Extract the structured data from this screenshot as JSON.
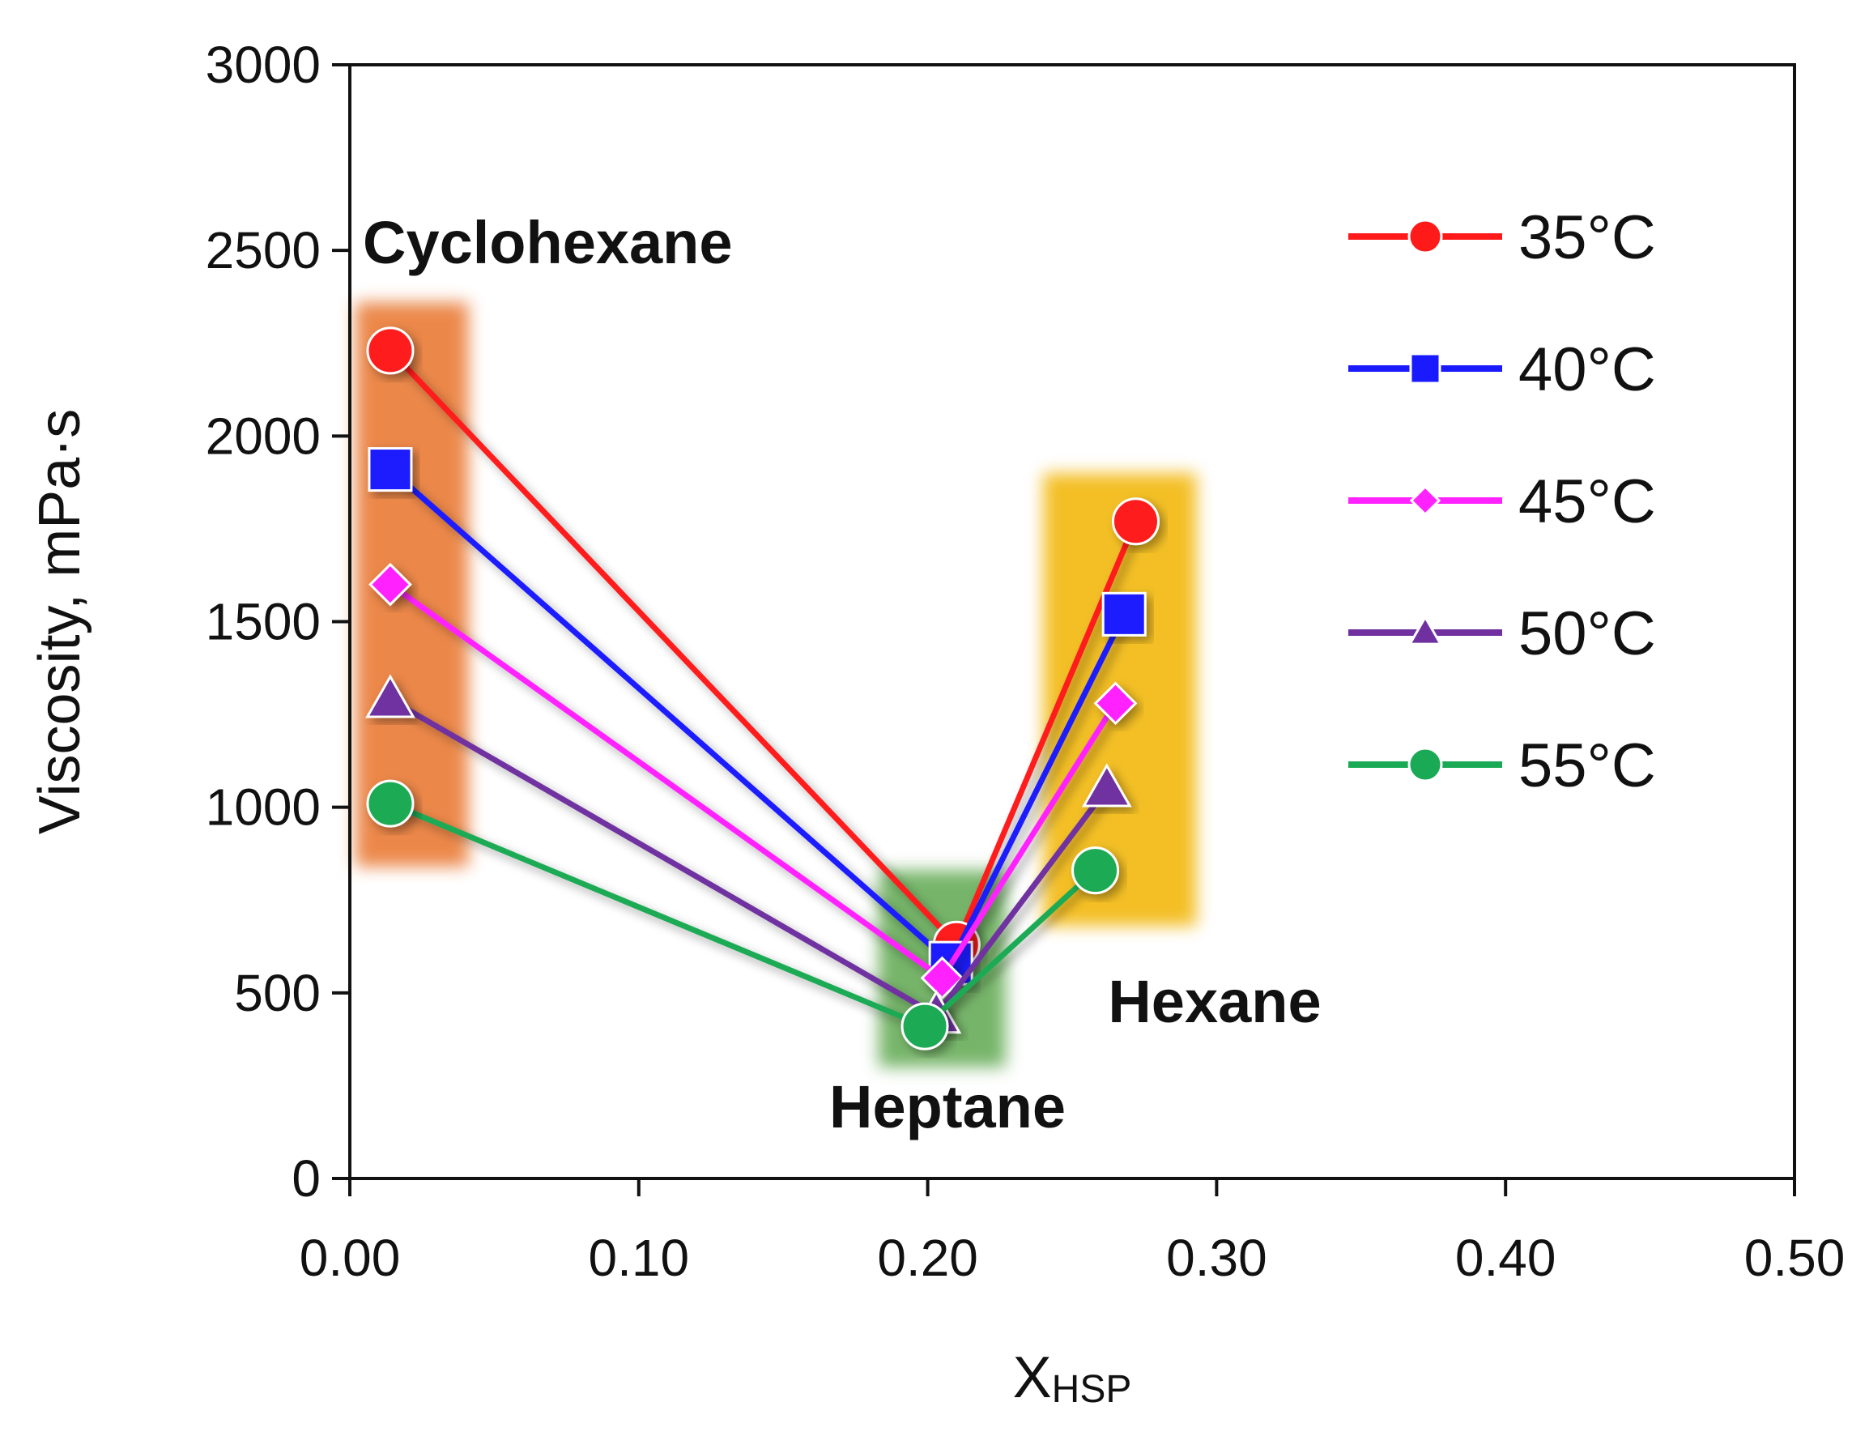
{
  "chart_data": {
    "type": "line",
    "title": "",
    "xlabel": {
      "main": "X",
      "subscript": "HSP"
    },
    "ylabel": "Viscosity, mPa·s",
    "xlim": [
      0,
      0.5
    ],
    "ylim": [
      0,
      3000
    ],
    "x_ticks": [
      "0.00",
      "0.10",
      "0.20",
      "0.30",
      "0.40",
      "0.50"
    ],
    "y_ticks": [
      "0",
      "500",
      "1000",
      "1500",
      "2000",
      "2500",
      "3000"
    ],
    "grid": false,
    "legend_position": "top-right",
    "regions": [
      {
        "label": "Cyclohexane",
        "x_range": [
          0.002,
          0.041
        ],
        "y_range": [
          840,
          2360
        ],
        "color": "#e8732c"
      },
      {
        "label": "Heptane",
        "x_range": [
          0.183,
          0.227
        ],
        "y_range": [
          300,
          830
        ],
        "color": "#5ea84f"
      },
      {
        "label": "Hexane",
        "x_range": [
          0.24,
          0.293
        ],
        "y_range": [
          680,
          1900
        ],
        "color": "#f2b400"
      }
    ],
    "series": [
      {
        "name": "35°C",
        "color": "#ff1a1a",
        "marker": "circle",
        "x": [
          0.014,
          0.21,
          0.272
        ],
        "values": [
          2230,
          630,
          1770
        ]
      },
      {
        "name": "40°C",
        "color": "#1a1aff",
        "marker": "square",
        "x": [
          0.014,
          0.208,
          0.268
        ],
        "values": [
          1910,
          580,
          1520
        ]
      },
      {
        "name": "45°C",
        "color": "#ff22ff",
        "marker": "diamond",
        "x": [
          0.014,
          0.205,
          0.265
        ],
        "values": [
          1600,
          540,
          1280
        ]
      },
      {
        "name": "50°C",
        "color": "#7030a0",
        "marker": "triangle",
        "x": [
          0.014,
          0.203,
          0.262
        ],
        "values": [
          1290,
          440,
          1050
        ]
      },
      {
        "name": "55°C",
        "color": "#1aaa55",
        "marker": "circle",
        "x": [
          0.014,
          0.199,
          0.258
        ],
        "values": [
          1010,
          410,
          830
        ]
      }
    ]
  }
}
